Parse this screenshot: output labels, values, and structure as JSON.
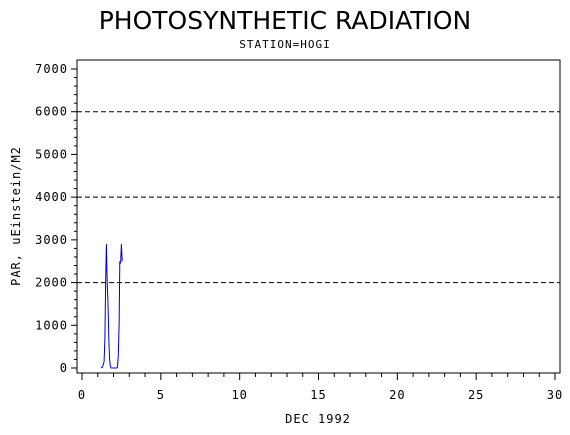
{
  "chart_data": {
    "type": "line",
    "title": "PHOTOSYNTHETIC RADIATION",
    "subtitle": "STATION=HOGI",
    "xlabel": "DEC 1992",
    "ylabel": "PAR, uEinstein/M2",
    "xlim": [
      0,
      30
    ],
    "ylim": [
      0,
      7000
    ],
    "x_ticks": [
      0,
      5,
      10,
      15,
      20,
      25,
      30
    ],
    "y_ticks": [
      0,
      1000,
      2000,
      3000,
      4000,
      5000,
      6000,
      7000
    ],
    "reference_lines_y": [
      2000,
      4000,
      6000
    ],
    "reference_line_style": "dashed",
    "grid": false,
    "line_color": "#0000cc",
    "series": [
      {
        "x": [
          1.2,
          1.3,
          1.4,
          1.45,
          1.5,
          1.55,
          1.6,
          1.65,
          1.7,
          1.75,
          1.8,
          1.85,
          1.9,
          1.95,
          2.0,
          2.1,
          2.2,
          2.25,
          2.3,
          2.35,
          2.4,
          2.45,
          2.5,
          2.55
        ],
        "y": [
          0,
          20,
          150,
          700,
          2100,
          2900,
          2000,
          1500,
          700,
          200,
          30,
          0,
          0,
          0,
          0,
          0,
          0,
          20,
          300,
          1000,
          2500,
          2450,
          2900,
          2500
        ]
      }
    ]
  }
}
